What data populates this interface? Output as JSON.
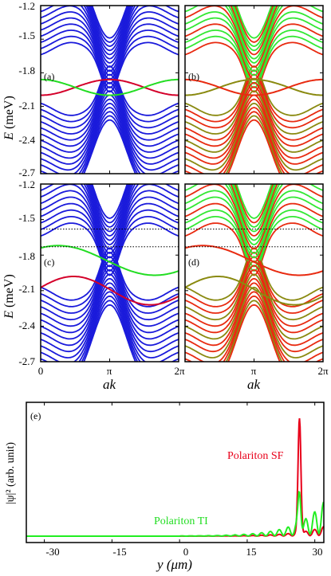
{
  "chart_data": [
    {
      "id": "a",
      "type": "line",
      "panel_label": "(a)",
      "ylabel_main": "E",
      "ylabel_unit": " (meV)",
      "yticks": [
        "-1.2",
        "-1.5",
        "-1.8",
        "-2.1",
        "-2.4",
        "-2.7"
      ],
      "ylim": [
        -2.7,
        -1.2
      ],
      "xlim": [
        0,
        6.2832
      ],
      "palette": [
        "#1a1adb",
        "#22dd22",
        "#d4002a"
      ],
      "bands": {
        "upper_bottom": -1.67,
        "gap_edges": [
          -1.93,
          -1.94
        ],
        "lower_top": -2.02
      }
    },
    {
      "id": "b",
      "type": "line",
      "panel_label": "(b)",
      "yticks": [],
      "ylim": [
        -2.7,
        -1.2
      ],
      "xlim": [
        0,
        6.2832
      ],
      "palette": [
        "#33e833",
        "#e82a10",
        "#8a8a10"
      ]
    },
    {
      "id": "c",
      "type": "line",
      "panel_label": "(c)",
      "ylabel_main": "E",
      "ylabel_unit": " (meV)",
      "yticks": [
        "-1.2",
        "-1.5",
        "-1.8",
        "-2.1",
        "-2.4",
        "-2.7"
      ],
      "xticks": [
        "0",
        "π",
        "2π"
      ],
      "xlabel": "ak",
      "ylim": [
        -2.7,
        -1.2
      ],
      "xlim": [
        0,
        6.2832
      ],
      "dotted_lines": [
        -1.58,
        -1.73
      ],
      "palette": [
        "#1a1adb",
        "#22dd22",
        "#d4002a"
      ]
    },
    {
      "id": "d",
      "type": "line",
      "panel_label": "(d)",
      "yticks": [],
      "xticks": [
        "π",
        "2π"
      ],
      "xlabel": "ak",
      "ylim": [
        -2.7,
        -1.2
      ],
      "xlim": [
        0,
        6.2832
      ],
      "dotted_lines": [
        -1.58,
        -1.73
      ],
      "palette": [
        "#33e833",
        "#e82a10",
        "#8a8a10"
      ]
    },
    {
      "id": "e",
      "type": "line",
      "panel_label": "(e)",
      "xlabel": "y (μm)",
      "ylabel": "|ψ|² (arb. unit)",
      "xticks": [
        "-30",
        "-15",
        "0",
        "15",
        "30"
      ],
      "xlim": [
        -34,
        32
      ],
      "series": [
        {
          "name": "Polariton SF",
          "color": "#e8001a",
          "peak_x": 26.6,
          "peak_y": 1.0
        },
        {
          "name": "Polariton TI",
          "color": "#22ee22",
          "peak_x": 26.6,
          "peak_y": 0.33
        }
      ]
    }
  ]
}
